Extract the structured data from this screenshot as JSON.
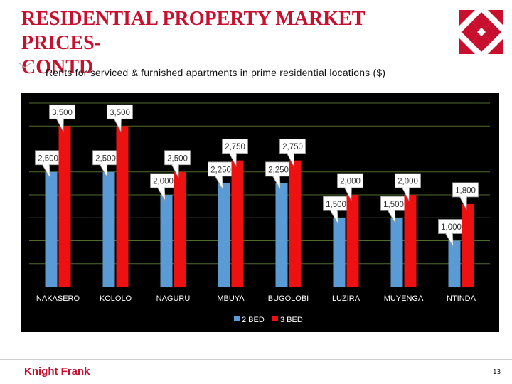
{
  "header": {
    "title_line1": "RESIDENTIAL PROPERTY MARKET PRICES-",
    "title_line2": "CONTD",
    "subtitle": "Rents for serviced & furnished apartments in prime residential locations ($)"
  },
  "footer": {
    "brand": "Knight Frank",
    "page_number": "13"
  },
  "colors": {
    "accent": "#c8102e",
    "bed2": "#5b9bd5",
    "bed3": "#ee1111",
    "chart_bg": "#000000",
    "grid": "#4e6b2e"
  },
  "chart_data": {
    "type": "bar",
    "categories": [
      "NAKASERO",
      "KOLOLO",
      "NAGURU",
      "MBUYA",
      "BUGOLOBI",
      "LUZIRA",
      "MUYENGA",
      "NTINDA"
    ],
    "series": [
      {
        "name": "2 BED",
        "values": [
          2500,
          2500,
          2000,
          2250,
          2250,
          1500,
          1500,
          1000
        ]
      },
      {
        "name": "3 BED",
        "values": [
          3500,
          3500,
          2500,
          2750,
          2750,
          2000,
          2000,
          1800
        ]
      }
    ],
    "data_labels": [
      [
        "2,500",
        "2,500",
        "2,000",
        "2,250",
        "2,250",
        "1,500",
        "1,500",
        "1,000"
      ],
      [
        "3,500",
        "3,500",
        "2,500",
        "2,750",
        "2,750",
        "2,000",
        "2,000",
        "1,800"
      ]
    ],
    "ylim": [
      0,
      4000
    ],
    "grid": true,
    "legend_position": "bottom"
  }
}
